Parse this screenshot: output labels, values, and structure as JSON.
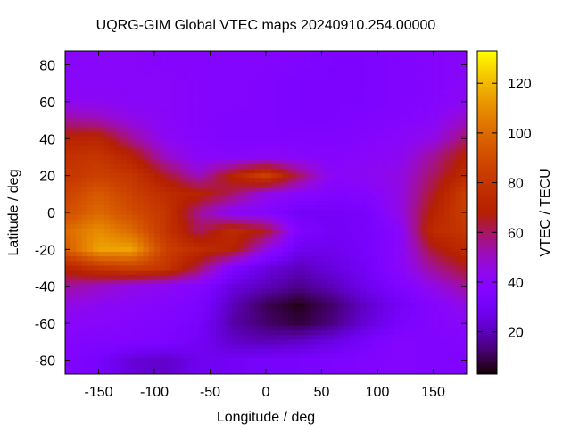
{
  "chart_data": {
    "type": "heatmap",
    "title": "UQRG-GIM Global VTEC maps 20240910.254.00000",
    "xlabel": "Longitude / deg",
    "ylabel": "Latitude / deg",
    "colorbar_label": "VTEC / TECU",
    "xlim": [
      -180,
      180
    ],
    "ylim": [
      -87.5,
      87.5
    ],
    "zlim": [
      3,
      133
    ],
    "xticks": [
      -150,
      -100,
      -50,
      0,
      50,
      100,
      150
    ],
    "yticks": [
      -80,
      -60,
      -40,
      -20,
      0,
      20,
      40,
      60,
      80
    ],
    "colorbar_ticks": [
      20,
      40,
      60,
      80,
      100,
      120
    ],
    "palette": "black-purple-red-orange-yellow",
    "overlay": "coastlines (cyan)",
    "coastline_color": "#40e0d0",
    "grid_lon": [
      -180,
      -150,
      -120,
      -90,
      -60,
      -30,
      0,
      30,
      60,
      90,
      120,
      150,
      180
    ],
    "grid_lat": [
      80,
      70,
      60,
      50,
      40,
      30,
      20,
      10,
      0,
      -10,
      -20,
      -30,
      -40,
      -50,
      -60,
      -70,
      -80
    ],
    "vtec": [
      [
        40,
        40,
        40,
        38,
        38,
        38,
        38,
        36,
        34,
        34,
        36,
        38,
        40
      ],
      [
        40,
        40,
        40,
        40,
        38,
        38,
        36,
        34,
        34,
        34,
        36,
        38,
        40
      ],
      [
        42,
        42,
        40,
        40,
        38,
        38,
        36,
        34,
        34,
        34,
        36,
        38,
        42
      ],
      [
        55,
        52,
        45,
        40,
        38,
        36,
        36,
        34,
        34,
        36,
        38,
        40,
        50
      ],
      [
        70,
        72,
        55,
        42,
        38,
        36,
        36,
        36,
        36,
        38,
        40,
        45,
        60
      ],
      [
        78,
        80,
        70,
        50,
        40,
        40,
        42,
        40,
        38,
        40,
        42,
        55,
        70
      ],
      [
        80,
        85,
        80,
        65,
        50,
        70,
        85,
        60,
        40,
        42,
        45,
        60,
        75
      ],
      [
        85,
        95,
        85,
        75,
        70,
        60,
        45,
        40,
        36,
        38,
        45,
        65,
        85
      ],
      [
        90,
        100,
        90,
        80,
        55,
        40,
        38,
        30,
        30,
        32,
        45,
        70,
        85
      ],
      [
        100,
        110,
        100,
        80,
        60,
        75,
        65,
        35,
        30,
        32,
        40,
        75,
        80
      ],
      [
        95,
        115,
        115,
        85,
        75,
        70,
        45,
        28,
        28,
        32,
        40,
        65,
        75
      ],
      [
        70,
        80,
        85,
        80,
        60,
        35,
        25,
        20,
        25,
        30,
        40,
        55,
        65
      ],
      [
        55,
        50,
        45,
        42,
        38,
        25,
        20,
        15,
        20,
        28,
        35,
        45,
        55
      ],
      [
        45,
        42,
        40,
        38,
        34,
        20,
        10,
        5,
        12,
        22,
        30,
        38,
        45
      ],
      [
        40,
        40,
        38,
        36,
        32,
        18,
        12,
        8,
        14,
        24,
        32,
        38,
        40
      ],
      [
        38,
        36,
        36,
        34,
        30,
        22,
        20,
        22,
        26,
        32,
        38,
        36,
        38
      ],
      [
        36,
        32,
        24,
        22,
        28,
        30,
        32,
        32,
        34,
        36,
        38,
        36,
        36
      ]
    ]
  }
}
